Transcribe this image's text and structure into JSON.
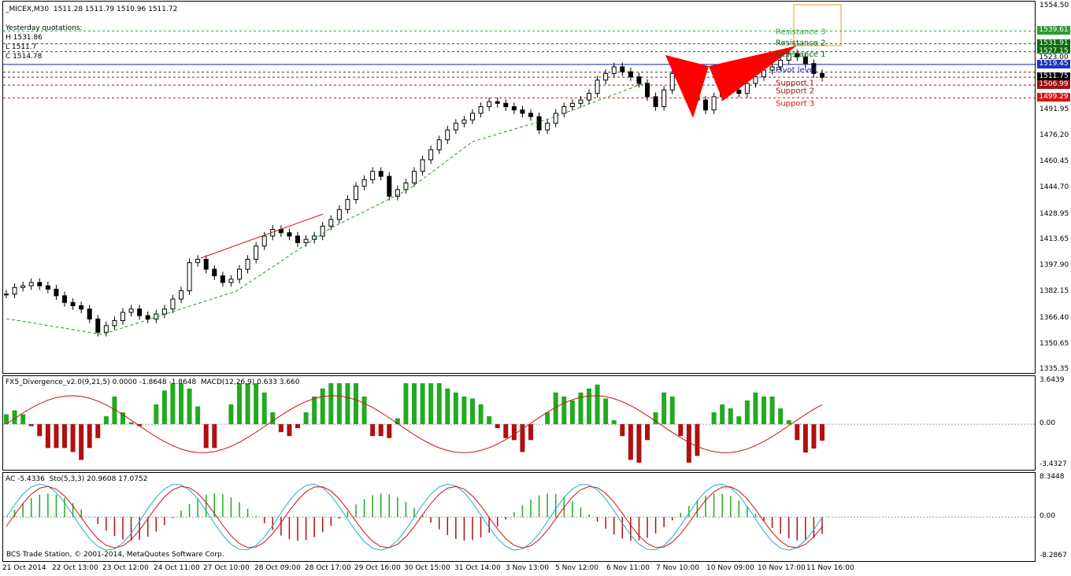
{
  "chart_title": "_MICEX,M30  1511.28 1511.79 1510.96 1511.72",
  "yesterday": {
    "label": "Yesterday quotations:",
    "high": "H 1531.86",
    "low": "L 1511.7",
    "close": "C 1514.78"
  },
  "fx5_label": "FX5_Divergence_v2.0(9,21,5) 0.0000 -1.8648 -1.8648  MACD(12,26,9) 0.633 3.660",
  "ac_label": "AC -5.4336  Sto(5,3,3) 20.9608 17.0752",
  "copyright": "BCS Trade Station, © 2001-2014, MetaQuotes Software Corp.",
  "levels": {
    "resistance_3": "Resistance 3",
    "resistance_2": "Resistance 2",
    "resistance_1": "Resistance 1",
    "pivot": "Pivot level",
    "support_1": "Support 1",
    "support_2": "Support 2",
    "support_3": "Support 3"
  },
  "price_tags": [
    {
      "value": "1539.61",
      "color": "#2e9b2e"
    },
    {
      "value": "1531.91",
      "color": "#0b6d0b"
    },
    {
      "value": "1527.15",
      "color": "#0b6d0b"
    },
    {
      "value": "1523.00",
      "color": "#ffffff"
    },
    {
      "value": "1519.45",
      "color": "#1e32c8"
    },
    {
      "value": "1511.75",
      "color": "#000000"
    },
    {
      "value": "1506.99",
      "color": "#a01010"
    },
    {
      "value": "1499.29",
      "color": "#e01010"
    }
  ],
  "colors": {
    "bull": "#22aa22",
    "bear": "#b01010",
    "pivot_line": "#1020c0",
    "pattern": "#ff0000",
    "box": "#e0a020",
    "stoch_main": "#1ab0c8",
    "stoch_signal": "#d01010"
  },
  "chart_data": {
    "type": "line",
    "symbol": "_MICEX",
    "timeframe": "M30",
    "ohlc_last": {
      "open": 1511.28,
      "high": 1511.79,
      "low": 1510.96,
      "close": 1511.72
    },
    "yaxis_ticks": [
      "1554.50",
      "1539.61",
      "1523.00",
      "1507.25",
      "1491.95",
      "1476.20",
      "1460.45",
      "1444.70",
      "1428.95",
      "1413.65",
      "1397.90",
      "1382.15",
      "1366.40",
      "1350.65",
      "1335.35"
    ],
    "ylim": [
      1335.35,
      1554.5
    ],
    "x_labels": [
      "21 Oct 2014",
      "22 Oct 13:00",
      "23 Oct 12:00",
      "24 Oct 11:00",
      "27 Oct 10:00",
      "28 Oct 09:00",
      "28 Oct 17:00",
      "29 Oct 16:00",
      "30 Oct 15:00",
      "31 Oct 14:00",
      "3 Nov 13:00",
      "5 Nov 12:00",
      "6 Nov 11:00",
      "7 Nov 10:00",
      "10 Nov 09:00",
      "10 Nov 17:00",
      "11 Nov 16:00"
    ],
    "close_series": [
      1381,
      1385,
      1386,
      1388,
      1386,
      1384,
      1380,
      1376,
      1374,
      1372,
      1366,
      1358,
      1362,
      1365,
      1370,
      1372,
      1368,
      1366,
      1369,
      1372,
      1378,
      1383,
      1400,
      1402,
      1396,
      1392,
      1388,
      1390,
      1396,
      1402,
      1410,
      1416,
      1420,
      1418,
      1416,
      1412,
      1414,
      1416,
      1422,
      1426,
      1432,
      1438,
      1446,
      1450,
      1455,
      1452,
      1440,
      1444,
      1448,
      1455,
      1462,
      1468,
      1474,
      1480,
      1484,
      1486,
      1490,
      1494,
      1497,
      1496,
      1494,
      1492,
      1490,
      1488,
      1480,
      1484,
      1490,
      1494,
      1496,
      1498,
      1502,
      1510,
      1514,
      1518,
      1515,
      1512,
      1508,
      1500,
      1494,
      1504,
      1514,
      1516,
      1508,
      1498,
      1492,
      1500,
      1508,
      1504,
      1502,
      1508,
      1512,
      1516,
      1518,
      1522,
      1526,
      1524,
      1520,
      1514,
      1511.72
    ],
    "fx5_ylim": [
      -3.4327,
      3.6439
    ],
    "fx5_ticks": [
      "3.6439",
      "0.00",
      "-3.4327"
    ],
    "ac_ylim": [
      -8.2867,
      8.3448
    ],
    "ac_ticks": [
      "8.3448",
      "0.00",
      "-8.2867"
    ],
    "pivot_levels": {
      "resistance_3": 1539.61,
      "resistance_2": 1531.91,
      "resistance_1": 1527.15,
      "pivot": 1519.45,
      "support_1": 1511.75,
      "support_2": 1506.99,
      "support_3": 1499.29
    }
  }
}
